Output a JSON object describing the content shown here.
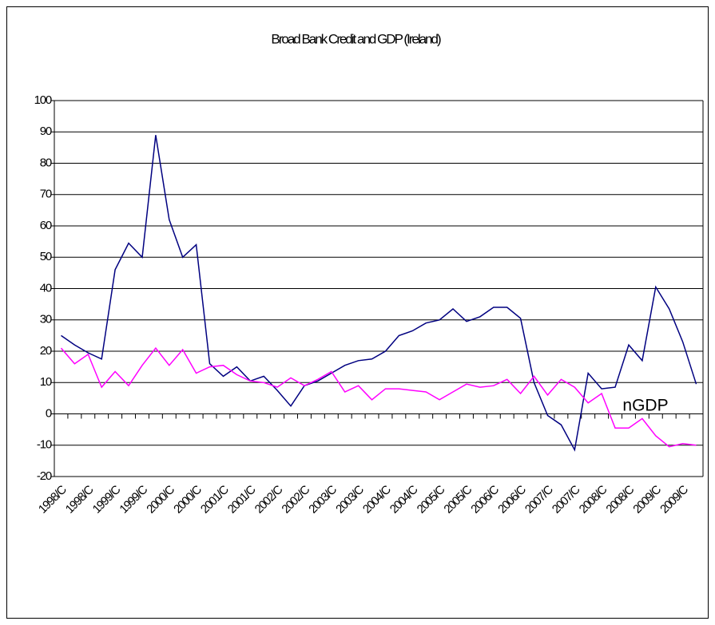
{
  "chart_data": {
    "type": "line",
    "title": "Broad Bank Credit and GDP (Ireland)",
    "categories": [
      "1998/C",
      null,
      "1998/C",
      null,
      "1999/C",
      null,
      "1999/C",
      null,
      "2000/C",
      null,
      "2000/C",
      null,
      "2001/C",
      null,
      "2001/C",
      null,
      "2002/C",
      null,
      "2002/C",
      null,
      "2003/C",
      null,
      "2003/C",
      null,
      "2004/C",
      null,
      "2004/C",
      null,
      "2005/C",
      null,
      "2005/C",
      null,
      "2006/C",
      null,
      "2006/C",
      null,
      "2007/C",
      null,
      "2007/C",
      null,
      "2008/C",
      null,
      "2008/C",
      null,
      "2009/C",
      null,
      "2009/C",
      null
    ],
    "series": [
      {
        "color": "#000080",
        "values": [
          25,
          22,
          19.5,
          17.5,
          46,
          54.5,
          50,
          89,
          62,
          50,
          54,
          16,
          12,
          15,
          10.5,
          12,
          7.5,
          2.5,
          9,
          10.5,
          13,
          15.5,
          17,
          17.5,
          20,
          25,
          26.5,
          29,
          30,
          33.5,
          29.5,
          31,
          34,
          34,
          30.5,
          10,
          -0.5,
          -3.5,
          -11.5,
          13,
          8,
          8.5,
          22,
          17,
          40.5,
          33.5,
          23,
          9.5
        ]
      },
      {
        "color": "#ff00ff",
        "values": [
          21,
          16,
          19,
          8.5,
          13.5,
          9,
          15.5,
          21,
          15.5,
          20.5,
          13,
          15,
          15.5,
          12.5,
          10.5,
          10,
          8.5,
          11.5,
          9,
          11,
          13.5,
          7,
          9,
          4.5,
          8,
          8,
          7.5,
          7,
          4.5,
          7,
          9.5,
          8.5,
          9,
          11,
          6.5,
          12,
          6,
          11,
          8.5,
          3.5,
          6.5,
          -4.5,
          -4.5,
          -1.5,
          -7,
          -10.5,
          -9.5,
          -10
        ]
      }
    ],
    "annotations": [
      "nGDP"
    ],
    "ylim": [
      -20,
      100
    ],
    "yticks": [
      -20,
      -10,
      0,
      10,
      20,
      30,
      40,
      50,
      60,
      70,
      80,
      90,
      100
    ],
    "grid": true
  }
}
